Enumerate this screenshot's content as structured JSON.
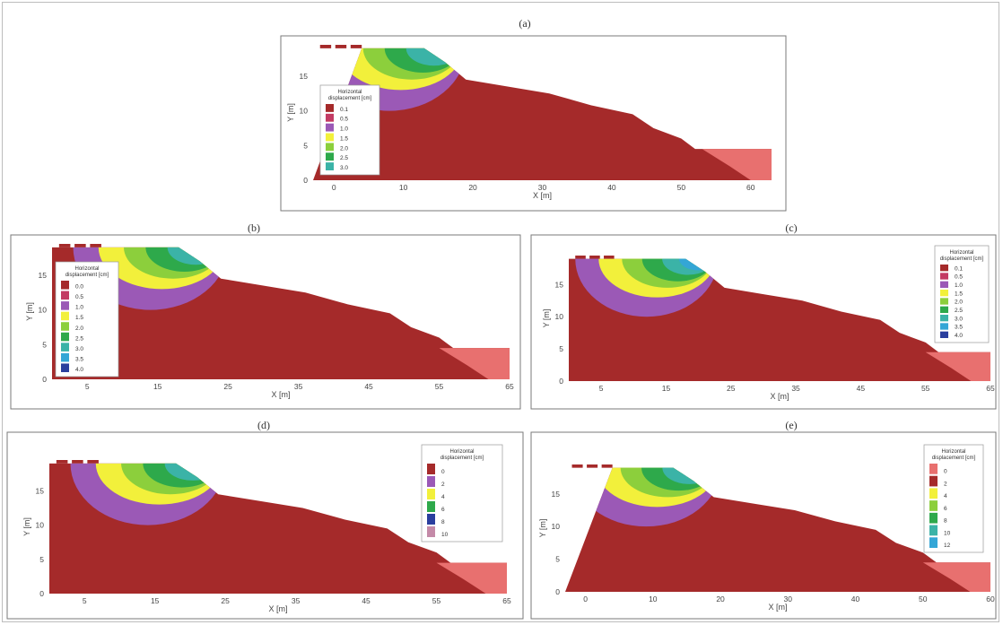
{
  "figure_labels": [
    "(a)",
    "(b)",
    "(c)",
    "(d)",
    "(e)"
  ],
  "colors": {
    "stable": "#a52a2a",
    "light_red": "#e8706f",
    "c1": "#c33b63",
    "c2": "#9b59b6",
    "c3": "#f2f03b",
    "c4": "#8ccf3c",
    "c5": "#2ea94b",
    "c6": "#3bb3a7",
    "c7": "#34a6d6",
    "c8": "#2a3f9e",
    "c9": "#c48aa8",
    "frame": "#7a7a7a"
  },
  "chart_data": [
    {
      "panel": "(a)",
      "type": "heatmap",
      "xlabel": "X [m]",
      "ylabel": "Y [m]",
      "x_ticks": [
        "0",
        "10",
        "20",
        "30",
        "40",
        "50",
        "60"
      ],
      "y_ticks": [
        "0",
        "5",
        "10",
        "15"
      ],
      "xlim": [
        -3,
        63
      ],
      "ylim": [
        0,
        19.5
      ],
      "legend_title": "Horizontal displacement [cm]",
      "legend_items": [
        "0.1",
        "0.5",
        "1.0",
        "1.5",
        "2.0",
        "2.5",
        "3.0"
      ]
    },
    {
      "panel": "(b)",
      "type": "heatmap",
      "xlabel": "X [m]",
      "ylabel": "Y [m]",
      "x_ticks": [
        "5",
        "15",
        "25",
        "35",
        "45",
        "55",
        "65"
      ],
      "y_ticks": [
        "0",
        "5",
        "10",
        "15"
      ],
      "xlim": [
        0,
        65
      ],
      "ylim": [
        0,
        19.5
      ],
      "legend_title": "Horizontal displacement [cm]",
      "legend_items": [
        "0.0",
        "0.5",
        "1.0",
        "1.5",
        "2.0",
        "2.5",
        "3.0",
        "3.5",
        "4.0"
      ]
    },
    {
      "panel": "(c)",
      "type": "heatmap",
      "xlabel": "X [m]",
      "ylabel": "Y [m]",
      "x_ticks": [
        "5",
        "15",
        "25",
        "35",
        "45",
        "55",
        "65"
      ],
      "y_ticks": [
        "0",
        "5",
        "10",
        "15"
      ],
      "xlim": [
        0,
        65
      ],
      "ylim": [
        0,
        19.5
      ],
      "legend_title": "Horizontal displacement [cm]",
      "legend_items": [
        "0.1",
        "0.5",
        "1.0",
        "1.5",
        "2.0",
        "2.5",
        "3.0",
        "3.5",
        "4.0"
      ]
    },
    {
      "panel": "(d)",
      "type": "heatmap",
      "xlabel": "X [m]",
      "ylabel": "Y [m]",
      "x_ticks": [
        "5",
        "15",
        "25",
        "35",
        "45",
        "55",
        "65"
      ],
      "y_ticks": [
        "0",
        "5",
        "10",
        "15"
      ],
      "xlim": [
        0,
        65
      ],
      "ylim": [
        0,
        19.5
      ],
      "legend_title": "Horizontal displacement [cm]",
      "legend_items": [
        "0",
        "2",
        "4",
        "6",
        "8",
        "10"
      ]
    },
    {
      "panel": "(e)",
      "type": "heatmap",
      "xlabel": "X [m]",
      "ylabel": "Y [m]",
      "x_ticks": [
        "0",
        "10",
        "20",
        "30",
        "40",
        "50",
        "60"
      ],
      "y_ticks": [
        "0",
        "5",
        "10",
        "15"
      ],
      "xlim": [
        -3,
        60
      ],
      "ylim": [
        0,
        19.5
      ],
      "legend_title": "Horizontal displacement [cm]",
      "legend_items": [
        "0",
        "2",
        "4",
        "6",
        "8",
        "10",
        "12"
      ]
    }
  ]
}
